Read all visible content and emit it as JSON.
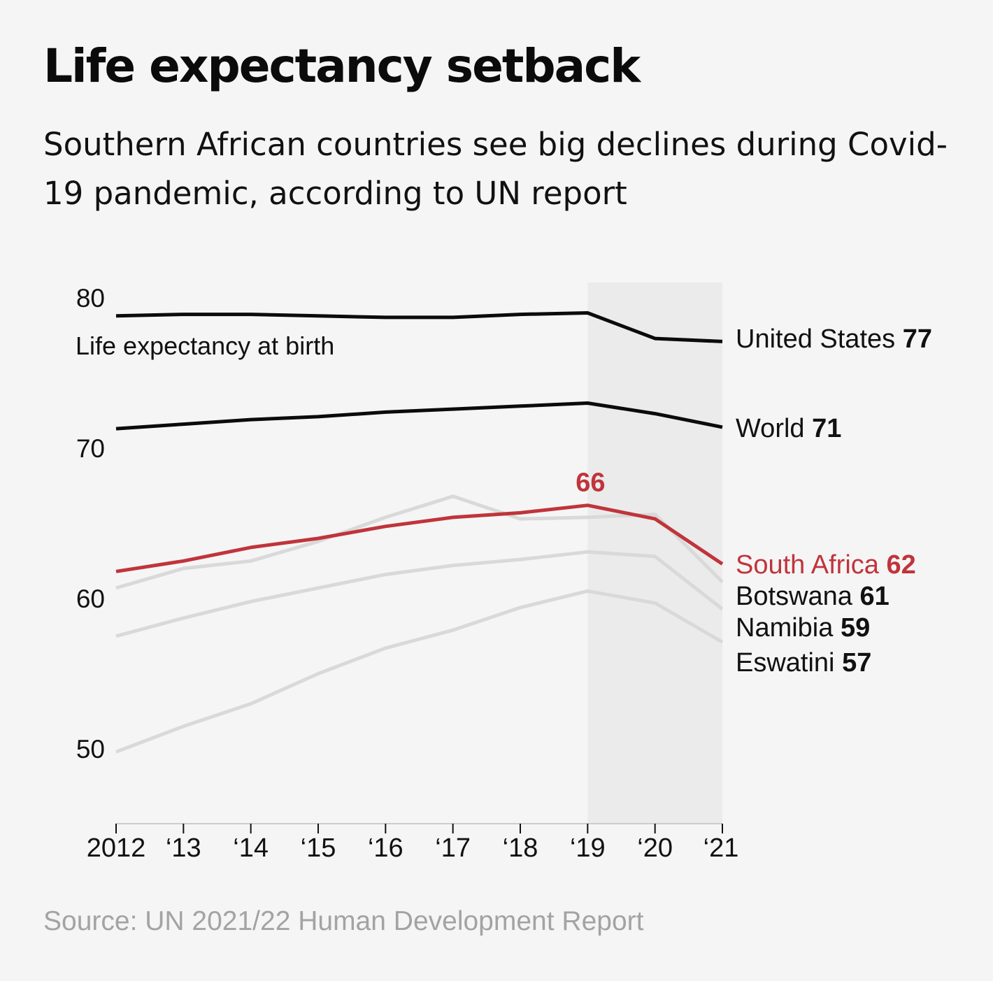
{
  "header": {
    "title": "Life expectancy setback",
    "subtitle": "Southern African countries see big declines during Covid-19 pandemic, according to UN report"
  },
  "footer": {
    "source": "Source: UN 2021/22 Human Development Report"
  },
  "colors": {
    "background": "#f5f5f5",
    "highlight_band": "#ebebeb",
    "black_line": "#0b0b0b",
    "grey_line": "#d9d9d9",
    "red_line": "#c0343b",
    "text": "#111111",
    "source_text": "#a3a3a3"
  },
  "chart_data": {
    "type": "line",
    "title": "Life expectancy setback",
    "ylabel": "Life expectancy at birth",
    "xlabel": "",
    "ylim": [
      45,
      81
    ],
    "yticks": [
      50,
      60,
      70,
      80
    ],
    "categories": [
      "2012",
      "‘13",
      "‘14",
      "‘15",
      "‘16",
      "‘17",
      "‘18",
      "‘19",
      "‘20",
      "‘21"
    ],
    "highlight_range": [
      "‘19",
      "‘21"
    ],
    "annotation": {
      "text": "66",
      "x_index": 7,
      "series": "South Africa"
    },
    "series": [
      {
        "name": "Eswatini",
        "label": "Eswatini",
        "end_label": "57",
        "style": "grey",
        "values": [
          49.8,
          51.5,
          53.0,
          55.0,
          56.7,
          57.9,
          59.4,
          60.5,
          59.7,
          57.1
        ]
      },
      {
        "name": "Namibia",
        "label": "Namibia",
        "end_label": "59",
        "style": "grey",
        "values": [
          57.5,
          58.7,
          59.8,
          60.7,
          61.6,
          62.2,
          62.6,
          63.1,
          62.8,
          59.3
        ]
      },
      {
        "name": "Botswana",
        "label": "Botswana",
        "end_label": "61",
        "style": "grey",
        "values": [
          60.7,
          62.0,
          62.5,
          63.8,
          65.4,
          66.8,
          65.3,
          65.4,
          65.6,
          61.1
        ]
      },
      {
        "name": "South Africa",
        "label": "South Africa",
        "end_label": "62",
        "style": "red",
        "values": [
          61.8,
          62.5,
          63.4,
          64.0,
          64.8,
          65.4,
          65.7,
          66.2,
          65.3,
          62.3
        ]
      },
      {
        "name": "World",
        "label": "World",
        "end_label": "71",
        "style": "black",
        "values": [
          71.3,
          71.6,
          71.9,
          72.1,
          72.4,
          72.6,
          72.8,
          73.0,
          72.3,
          71.4
        ]
      },
      {
        "name": "United States",
        "label": "United States",
        "end_label": "77",
        "style": "black",
        "values": [
          78.8,
          78.9,
          78.9,
          78.8,
          78.7,
          78.7,
          78.9,
          79.0,
          77.3,
          77.1
        ]
      }
    ]
  }
}
